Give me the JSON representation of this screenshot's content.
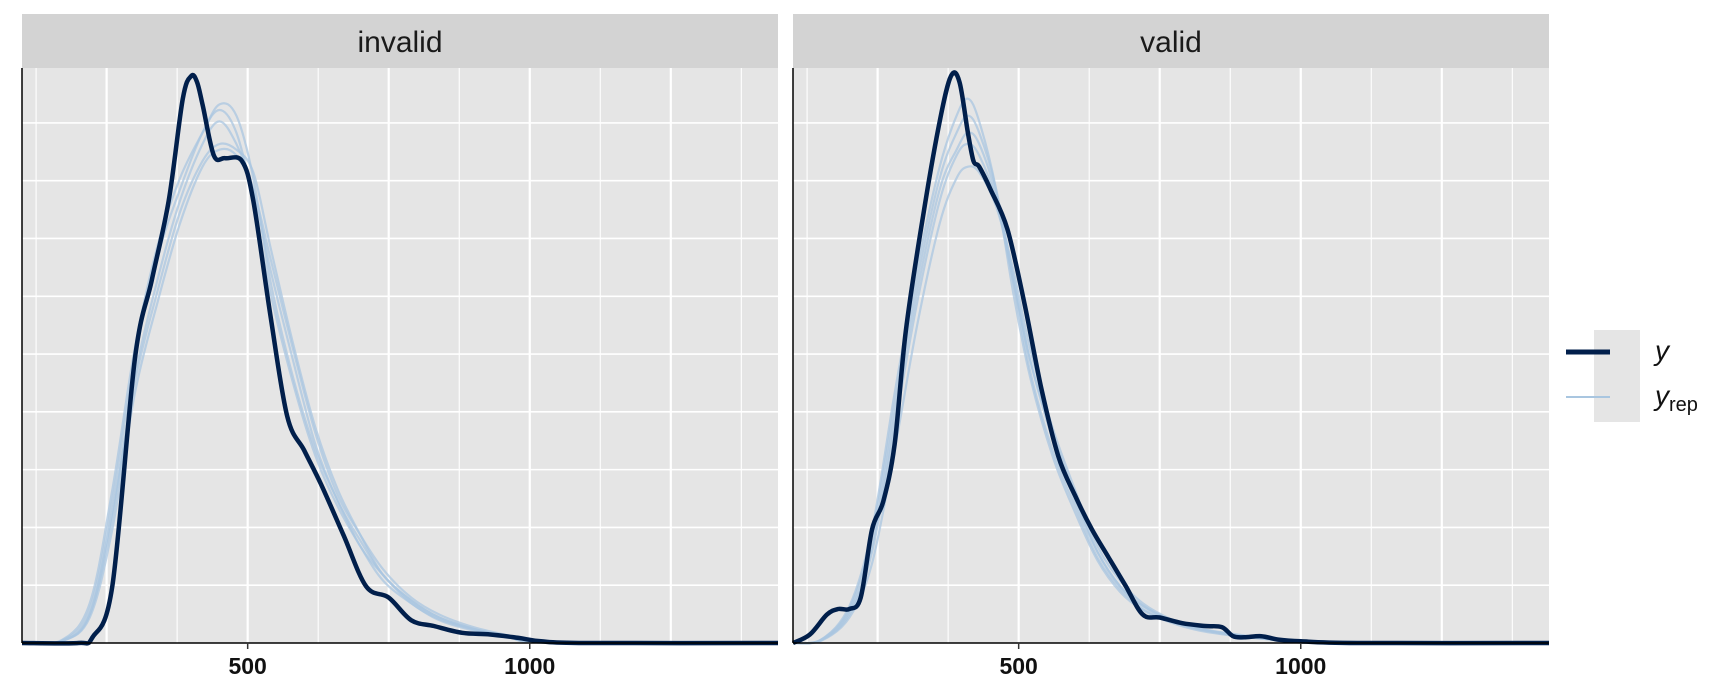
{
  "colors": {
    "panel_bg": "#e5e5e5",
    "strip_bg": "#d3d3d3",
    "grid": "#ffffff",
    "y": "#011f4b",
    "yrep": "#a9c6e0"
  },
  "legend": {
    "y_label": "y",
    "yrep_label": "y",
    "yrep_sub": "rep"
  },
  "chart_data": {
    "type": "line",
    "xlim": [
      100,
      1440
    ],
    "ylim": [
      0,
      1
    ],
    "x_ticks": [
      500,
      1000
    ],
    "x_tick_labels": [
      "500",
      "1000"
    ],
    "y_ticks_shown": false,
    "grid": true,
    "legend_position": "right",
    "panels": [
      {
        "label": "invalid",
        "series": [
          {
            "name": "y",
            "x": [
              100,
              200,
              225,
              260,
              300,
              330,
              360,
              385,
              400,
              410,
              420,
              440,
              460,
              490,
              510,
              540,
              570,
              600,
              630,
              670,
              710,
              750,
              790,
              830,
              880,
              930,
              980,
              1020,
              1100,
              1440
            ],
            "y": [
              0,
              0,
              0.01,
              0.1,
              0.5,
              0.64,
              0.78,
              0.96,
              1.0,
              0.99,
              0.95,
              0.86,
              0.855,
              0.85,
              0.78,
              0.58,
              0.4,
              0.34,
              0.28,
              0.19,
              0.1,
              0.08,
              0.04,
              0.03,
              0.018,
              0.015,
              0.009,
              0.003,
              0,
              0
            ]
          },
          {
            "name": "y",
            "x": [
              100,
              170,
              220,
              260,
              300,
              340,
              380,
              420,
              450,
              480,
              510,
              540,
              580,
              620,
              660,
              700,
              740,
              790,
              840,
              900,
              960,
              1040,
              1440
            ],
            "y": [
              0,
              0.003,
              0.05,
              0.22,
              0.47,
              0.64,
              0.78,
              0.88,
              0.92,
              0.88,
              0.8,
              0.66,
              0.5,
              0.35,
              0.25,
              0.18,
              0.12,
              0.075,
              0.045,
              0.025,
              0.013,
              0,
              0
            ]
          },
          {
            "name": "y",
            "x": [
              100,
              170,
              220,
              260,
              300,
              340,
              380,
              420,
              450,
              480,
              510,
              540,
              580,
              620,
              660,
              700,
              740,
              790,
              840,
              900,
              960,
              1040,
              1440
            ],
            "y": [
              0,
              0.004,
              0.06,
              0.25,
              0.5,
              0.68,
              0.8,
              0.9,
              0.94,
              0.9,
              0.78,
              0.62,
              0.46,
              0.33,
              0.24,
              0.17,
              0.11,
              0.07,
              0.04,
              0.022,
              0.011,
              0,
              0
            ]
          },
          {
            "name": "y",
            "x": [
              100,
              170,
              220,
              260,
              300,
              340,
              380,
              420,
              450,
              480,
              510,
              540,
              580,
              620,
              660,
              700,
              740,
              790,
              840,
              900,
              960,
              1040,
              1440
            ],
            "y": [
              0,
              0.003,
              0.045,
              0.2,
              0.44,
              0.6,
              0.74,
              0.84,
              0.87,
              0.86,
              0.8,
              0.68,
              0.52,
              0.37,
              0.26,
              0.19,
              0.13,
              0.08,
              0.05,
              0.028,
              0.014,
              0,
              0
            ]
          },
          {
            "name": "y",
            "x": [
              100,
              170,
              220,
              260,
              300,
              340,
              380,
              420,
              450,
              480,
              510,
              540,
              580,
              620,
              660,
              700,
              740,
              790,
              840,
              900,
              960,
              1040,
              1440
            ],
            "y": [
              0,
              0.005,
              0.07,
              0.27,
              0.52,
              0.7,
              0.82,
              0.9,
              0.95,
              0.93,
              0.82,
              0.64,
              0.47,
              0.34,
              0.25,
              0.17,
              0.12,
              0.07,
              0.042,
              0.024,
              0.012,
              0,
              0
            ]
          },
          {
            "name": "y",
            "x": [
              100,
              170,
              220,
              260,
              300,
              340,
              380,
              420,
              450,
              480,
              510,
              540,
              580,
              620,
              660,
              700,
              740,
              790,
              840,
              900,
              960,
              1040,
              1440
            ],
            "y": [
              0,
              0.003,
              0.05,
              0.23,
              0.46,
              0.62,
              0.76,
              0.85,
              0.88,
              0.87,
              0.83,
              0.7,
              0.53,
              0.38,
              0.27,
              0.19,
              0.12,
              0.075,
              0.045,
              0.025,
              0.012,
              0,
              0
            ]
          }
        ]
      },
      {
        "label": "valid",
        "series": [
          {
            "name": "y",
            "x": [
              100,
              130,
              160,
              180,
              200,
              220,
              240,
              260,
              280,
              300,
              330,
              360,
              380,
              395,
              410,
              420,
              430,
              450,
              480,
              510,
              540,
              570,
              600,
              630,
              660,
              690,
              720,
              750,
              790,
              830,
              860,
              880,
              900,
              930,
              960,
              1000,
              1100,
              1440
            ],
            "y": [
              0,
              0.015,
              0.05,
              0.06,
              0.06,
              0.08,
              0.2,
              0.25,
              0.35,
              0.55,
              0.75,
              0.92,
              1.0,
              0.99,
              0.9,
              0.85,
              0.84,
              0.8,
              0.73,
              0.6,
              0.45,
              0.33,
              0.26,
              0.2,
              0.15,
              0.1,
              0.05,
              0.045,
              0.035,
              0.03,
              0.028,
              0.012,
              0.01,
              0.012,
              0.006,
              0.003,
              0,
              0
            ]
          },
          {
            "name": "y",
            "x": [
              100,
              150,
              200,
              240,
              280,
              320,
              360,
              390,
              410,
              430,
              460,
              490,
              520,
              560,
              600,
              640,
              680,
              720,
              770,
              820,
              880,
              960,
              1040,
              1440
            ],
            "y": [
              0,
              0.005,
              0.05,
              0.16,
              0.38,
              0.6,
              0.78,
              0.86,
              0.88,
              0.86,
              0.78,
              0.64,
              0.5,
              0.36,
              0.25,
              0.16,
              0.1,
              0.065,
              0.04,
              0.025,
              0.015,
              0.006,
              0,
              0
            ]
          },
          {
            "name": "y",
            "x": [
              100,
              150,
              200,
              240,
              280,
              320,
              360,
              390,
              410,
              430,
              460,
              490,
              520,
              560,
              600,
              640,
              680,
              720,
              770,
              820,
              880,
              960,
              1040,
              1440
            ],
            "y": [
              0,
              0.006,
              0.06,
              0.19,
              0.42,
              0.64,
              0.82,
              0.9,
              0.93,
              0.9,
              0.8,
              0.64,
              0.48,
              0.34,
              0.24,
              0.15,
              0.095,
              0.06,
              0.038,
              0.024,
              0.014,
              0.005,
              0,
              0
            ]
          },
          {
            "name": "y",
            "x": [
              100,
              150,
              200,
              240,
              280,
              320,
              360,
              390,
              410,
              430,
              460,
              490,
              520,
              560,
              600,
              640,
              680,
              720,
              770,
              820,
              880,
              960,
              1040,
              1440
            ],
            "y": [
              0,
              0.004,
              0.045,
              0.14,
              0.34,
              0.56,
              0.74,
              0.82,
              0.84,
              0.83,
              0.77,
              0.66,
              0.52,
              0.38,
              0.27,
              0.17,
              0.11,
              0.07,
              0.042,
              0.026,
              0.016,
              0.006,
              0,
              0
            ]
          },
          {
            "name": "y",
            "x": [
              100,
              150,
              200,
              240,
              280,
              320,
              360,
              390,
              410,
              430,
              460,
              490,
              520,
              560,
              600,
              640,
              680,
              720,
              770,
              820,
              880,
              960,
              1040,
              1440
            ],
            "y": [
              0,
              0.006,
              0.065,
              0.2,
              0.44,
              0.66,
              0.84,
              0.93,
              0.96,
              0.92,
              0.8,
              0.62,
              0.47,
              0.33,
              0.23,
              0.145,
              0.09,
              0.058,
              0.036,
              0.022,
              0.013,
              0.005,
              0,
              0
            ]
          },
          {
            "name": "y",
            "x": [
              100,
              150,
              200,
              240,
              280,
              320,
              360,
              390,
              410,
              430,
              460,
              490,
              520,
              560,
              600,
              640,
              680,
              720,
              770,
              820,
              880,
              960,
              1040,
              1440
            ],
            "y": [
              0,
              0.005,
              0.055,
              0.17,
              0.4,
              0.62,
              0.8,
              0.87,
              0.9,
              0.88,
              0.79,
              0.65,
              0.5,
              0.37,
              0.26,
              0.16,
              0.1,
              0.066,
              0.04,
              0.025,
              0.015,
              0.006,
              0,
              0
            ]
          }
        ]
      }
    ]
  }
}
